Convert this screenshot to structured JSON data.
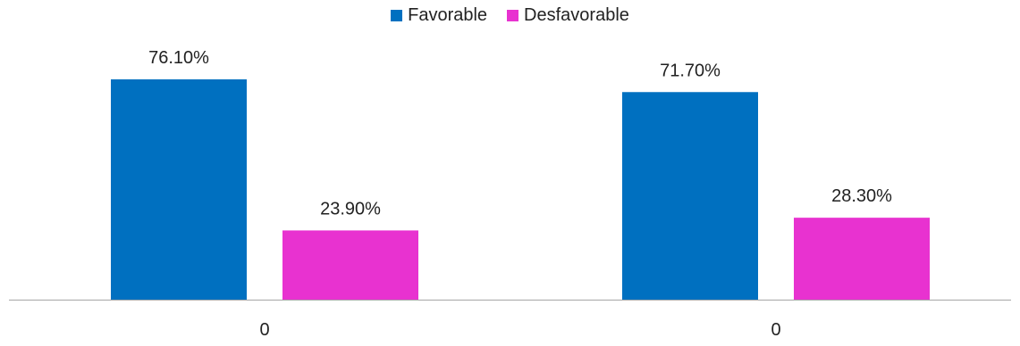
{
  "chart_data": {
    "type": "bar",
    "categories": [
      "0",
      "0"
    ],
    "series": [
      {
        "name": "Favorable",
        "values": [
          76.1,
          71.7
        ],
        "labels": [
          "76.10%",
          "71.70%"
        ],
        "color": "#0070C0"
      },
      {
        "name": "Desfavorable",
        "values": [
          23.9,
          28.3
        ],
        "labels": [
          "23.90%",
          "28.30%"
        ],
        "color": "#E832D0"
      }
    ],
    "title": "",
    "xlabel": "",
    "ylabel": "",
    "ylim": [
      0,
      80
    ],
    "grid": false,
    "legend_position": "top-center",
    "axis_color": "#A6A6A6"
  }
}
